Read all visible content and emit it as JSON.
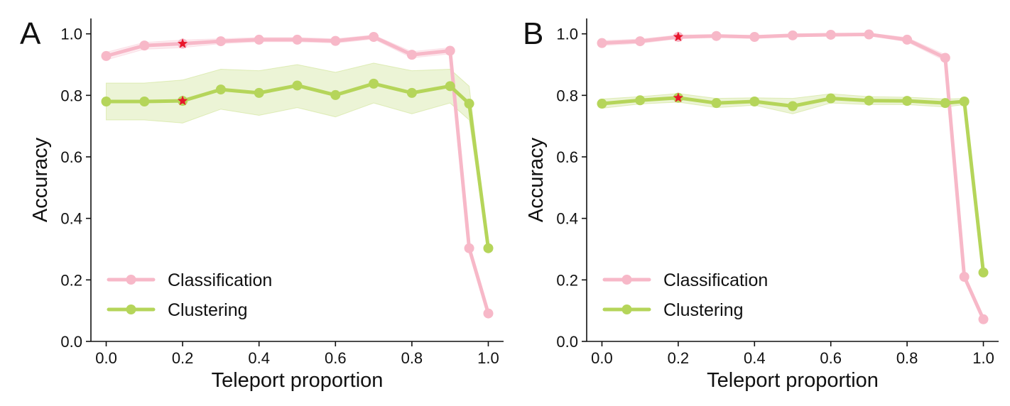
{
  "figure": {
    "colors": {
      "classification": "#f7b8c8",
      "clustering": "#b5d55a",
      "star": "#e8162b",
      "axis": "#111111"
    },
    "panels": [
      {
        "letter": "A",
        "chart_data": {
          "type": "line",
          "title": "",
          "xlabel": "Teleport proportion",
          "ylabel": "Accuracy",
          "xlim": [
            -0.04,
            1.04
          ],
          "ylim": [
            0,
            1.05
          ],
          "xticks": [
            0.0,
            0.2,
            0.4,
            0.6,
            0.8,
            1.0
          ],
          "xtick_labels": [
            "0.0",
            "0.2",
            "0.4",
            "0.6",
            "0.8",
            "1.0"
          ],
          "yticks": [
            0.0,
            0.2,
            0.4,
            0.6,
            0.8,
            1.0
          ],
          "ytick_labels": [
            "0.0",
            "0.2",
            "0.4",
            "0.6",
            "0.8",
            "1.0"
          ],
          "x": [
            0.0,
            0.1,
            0.2,
            0.3,
            0.4,
            0.5,
            0.6,
            0.7,
            0.8,
            0.9,
            0.95,
            1.0
          ],
          "legend_position": "lower-left",
          "highlight_x": 0.2,
          "series": [
            {
              "name": "Classification",
              "values": [
                0.928,
                0.962,
                0.968,
                0.976,
                0.981,
                0.981,
                0.977,
                0.99,
                0.932,
                0.945,
                0.303,
                0.091
              ],
              "lower": [
                0.915,
                0.95,
                0.955,
                0.968,
                0.974,
                0.974,
                0.97,
                0.983,
                0.922,
                0.935,
                0.29,
                0.085
              ],
              "upper": [
                0.94,
                0.972,
                0.98,
                0.984,
                0.988,
                0.988,
                0.984,
                0.996,
                0.942,
                0.955,
                0.315,
                0.097
              ]
            },
            {
              "name": "Clustering",
              "values": [
                0.78,
                0.78,
                0.782,
                0.819,
                0.808,
                0.832,
                0.801,
                0.838,
                0.808,
                0.83,
                0.773,
                0.303
              ],
              "lower": [
                0.72,
                0.72,
                0.71,
                0.755,
                0.735,
                0.76,
                0.73,
                0.775,
                0.74,
                0.775,
                0.72,
                0.295
              ],
              "upper": [
                0.84,
                0.84,
                0.85,
                0.885,
                0.88,
                0.9,
                0.875,
                0.905,
                0.88,
                0.885,
                0.83,
                0.31
              ]
            }
          ]
        }
      },
      {
        "letter": "B",
        "chart_data": {
          "type": "line",
          "title": "",
          "xlabel": "Teleport proportion",
          "ylabel": "Accuracy",
          "xlim": [
            -0.04,
            1.04
          ],
          "ylim": [
            0,
            1.05
          ],
          "xticks": [
            0.0,
            0.2,
            0.4,
            0.6,
            0.8,
            1.0
          ],
          "xtick_labels": [
            "0.0",
            "0.2",
            "0.4",
            "0.6",
            "0.8",
            "1.0"
          ],
          "yticks": [
            0.0,
            0.2,
            0.4,
            0.6,
            0.8,
            1.0
          ],
          "ytick_labels": [
            "0.0",
            "0.2",
            "0.4",
            "0.6",
            "0.8",
            "1.0"
          ],
          "x": [
            0.0,
            0.1,
            0.2,
            0.3,
            0.4,
            0.5,
            0.6,
            0.7,
            0.8,
            0.9,
            0.95,
            1.0
          ],
          "legend_position": "lower-left",
          "highlight_x": 0.2,
          "series": [
            {
              "name": "Classification",
              "values": [
                0.97,
                0.976,
                0.99,
                0.993,
                0.99,
                0.995,
                0.997,
                0.998,
                0.981,
                0.922,
                0.21,
                0.072
              ],
              "lower": [
                0.962,
                0.969,
                0.984,
                0.988,
                0.985,
                0.99,
                0.993,
                0.994,
                0.974,
                0.912,
                0.2,
                0.066
              ],
              "upper": [
                0.978,
                0.983,
                0.996,
                0.998,
                0.995,
                1.0,
                1.001,
                1.002,
                0.988,
                0.932,
                0.22,
                0.078
              ]
            },
            {
              "name": "Clustering",
              "values": [
                0.773,
                0.784,
                0.792,
                0.775,
                0.78,
                0.765,
                0.79,
                0.783,
                0.782,
                0.775,
                0.78,
                0.224
              ],
              "lower": [
                0.758,
                0.772,
                0.778,
                0.76,
                0.768,
                0.74,
                0.775,
                0.77,
                0.77,
                0.762,
                0.77,
                0.218
              ],
              "upper": [
                0.788,
                0.796,
                0.806,
                0.79,
                0.792,
                0.79,
                0.805,
                0.796,
                0.794,
                0.788,
                0.79,
                0.23
              ]
            }
          ]
        }
      }
    ]
  }
}
